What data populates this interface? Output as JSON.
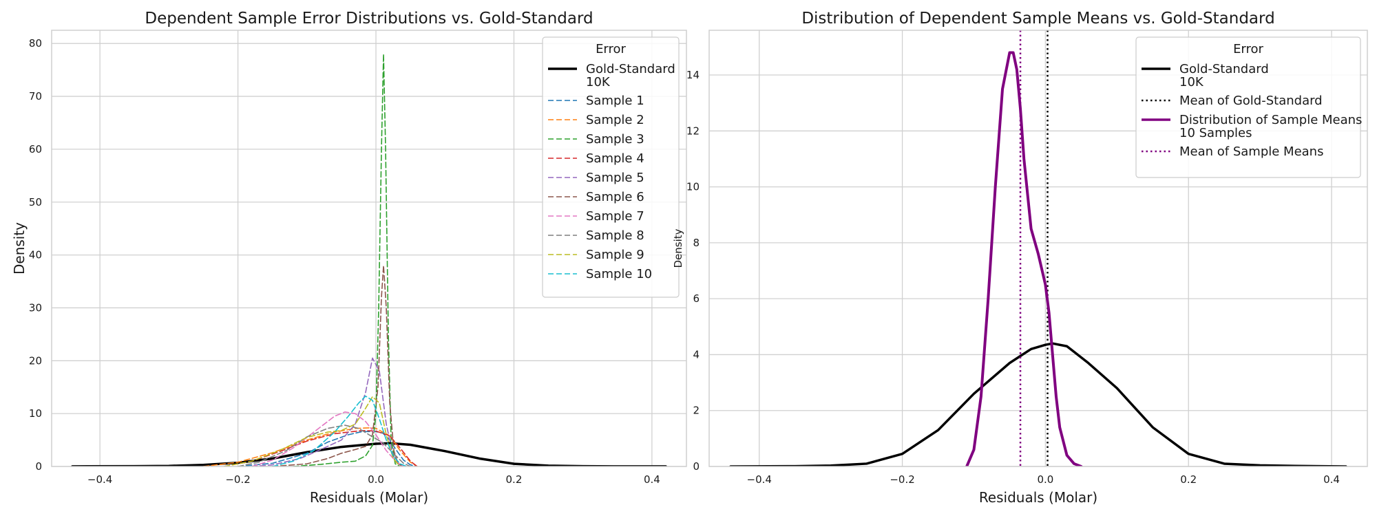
{
  "chart_data": [
    {
      "type": "line",
      "title": "Dependent Sample Error Distributions vs. Gold-Standard",
      "xlabel": "Residuals (Molar)",
      "ylabel": "Density",
      "xlim": [
        -0.47,
        0.45
      ],
      "ylim": [
        0,
        82.5
      ],
      "xticks": [
        -0.4,
        -0.2,
        0.0,
        0.2,
        0.4
      ],
      "xtick_labels": [
        "−0.4",
        "−0.2",
        "0.0",
        "0.2",
        "0.4"
      ],
      "yticks": [
        0,
        10,
        20,
        30,
        40,
        50,
        60,
        70,
        80
      ],
      "ytick_labels": [
        "0",
        "10",
        "20",
        "30",
        "40",
        "50",
        "60",
        "70",
        "80"
      ],
      "grid": true,
      "legend": {
        "title": "Error",
        "placement": "top-right"
      },
      "series": [
        {
          "name": [
            "Gold-Standard",
            "10K"
          ],
          "color": "#000000",
          "style": "solid",
          "width": 3.5,
          "points": [
            [
              -0.44,
              0.02
            ],
            [
              -0.35,
              0.05
            ],
            [
              -0.3,
              0.1
            ],
            [
              -0.25,
              0.3
            ],
            [
              -0.2,
              0.7
            ],
            [
              -0.15,
              1.5
            ],
            [
              -0.1,
              2.7
            ],
            [
              -0.05,
              3.7
            ],
            [
              0.0,
              4.3
            ],
            [
              0.02,
              4.4
            ],
            [
              0.05,
              4.1
            ],
            [
              0.1,
              2.9
            ],
            [
              0.15,
              1.5
            ],
            [
              0.2,
              0.5
            ],
            [
              0.25,
              0.15
            ],
            [
              0.3,
              0.05
            ],
            [
              0.35,
              0.02
            ],
            [
              0.42,
              0.01
            ]
          ]
        },
        {
          "name": [
            "Sample 1"
          ],
          "color": "#1f77b4",
          "style": "dashed",
          "width": 1.6,
          "points": [
            [
              -0.2,
              0
            ],
            [
              -0.15,
              0.6
            ],
            [
              -0.1,
              2.5
            ],
            [
              -0.07,
              4.6
            ],
            [
              -0.04,
              6.0
            ],
            [
              -0.02,
              6.6
            ],
            [
              0.0,
              6.6
            ],
            [
              0.01,
              6.3
            ],
            [
              0.02,
              5.0
            ],
            [
              0.03,
              3.0
            ],
            [
              0.04,
              1.2
            ],
            [
              0.05,
              0.3
            ],
            [
              0.06,
              0
            ]
          ]
        },
        {
          "name": [
            "Sample 2"
          ],
          "color": "#ff7f0e",
          "style": "dashed",
          "width": 1.6,
          "points": [
            [
              -0.25,
              0
            ],
            [
              -0.2,
              0.8
            ],
            [
              -0.15,
              2.6
            ],
            [
              -0.1,
              5.0
            ],
            [
              -0.06,
              6.5
            ],
            [
              -0.03,
              7.2
            ],
            [
              -0.01,
              7.3
            ],
            [
              0.0,
              7.2
            ],
            [
              0.02,
              5.8
            ],
            [
              0.035,
              3.0
            ],
            [
              0.05,
              0.8
            ],
            [
              0.06,
              0
            ]
          ]
        },
        {
          "name": [
            "Sample 3"
          ],
          "color": "#2ca02c",
          "style": "dashed",
          "width": 1.6,
          "points": [
            [
              -0.12,
              0
            ],
            [
              -0.08,
              0.4
            ],
            [
              -0.05,
              0.8
            ],
            [
              -0.03,
              1.0
            ],
            [
              -0.015,
              2.0
            ],
            [
              -0.005,
              4.0
            ],
            [
              0.0,
              10
            ],
            [
              0.004,
              30
            ],
            [
              0.008,
              60
            ],
            [
              0.011,
              78
            ],
            [
              0.014,
              60
            ],
            [
              0.018,
              25
            ],
            [
              0.022,
              5
            ],
            [
              0.028,
              0.5
            ],
            [
              0.035,
              0
            ]
          ]
        },
        {
          "name": [
            "Sample 4"
          ],
          "color": "#d62728",
          "style": "dashed",
          "width": 1.6,
          "points": [
            [
              -0.22,
              0
            ],
            [
              -0.18,
              1.0
            ],
            [
              -0.14,
              2.8
            ],
            [
              -0.1,
              4.8
            ],
            [
              -0.06,
              6.2
            ],
            [
              -0.02,
              6.8
            ],
            [
              0.0,
              6.7
            ],
            [
              0.02,
              5.8
            ],
            [
              0.035,
              3.5
            ],
            [
              0.05,
              1.0
            ],
            [
              0.06,
              0
            ]
          ]
        },
        {
          "name": [
            "Sample 5"
          ],
          "color": "#9467bd",
          "style": "dashed",
          "width": 1.6,
          "points": [
            [
              -0.18,
              0
            ],
            [
              -0.15,
              0.3
            ],
            [
              -0.11,
              1.5
            ],
            [
              -0.08,
              3.2
            ],
            [
              -0.05,
              5.0
            ],
            [
              -0.03,
              8.0
            ],
            [
              -0.015,
              14.0
            ],
            [
              -0.005,
              20.5
            ],
            [
              0.005,
              18.0
            ],
            [
              0.015,
              8.0
            ],
            [
              0.025,
              2.0
            ],
            [
              0.035,
              0.3
            ],
            [
              0.04,
              0
            ]
          ]
        },
        {
          "name": [
            "Sample 6"
          ],
          "color": "#8c564b",
          "style": "dashed",
          "width": 1.6,
          "points": [
            [
              -0.15,
              0
            ],
            [
              -0.1,
              0.5
            ],
            [
              -0.07,
              1.5
            ],
            [
              -0.05,
              2.5
            ],
            [
              -0.03,
              3.2
            ],
            [
              -0.015,
              3.8
            ],
            [
              -0.005,
              6.0
            ],
            [
              0.003,
              15.0
            ],
            [
              0.008,
              32.0
            ],
            [
              0.011,
              38.0
            ],
            [
              0.015,
              30.0
            ],
            [
              0.02,
              12.0
            ],
            [
              0.026,
              3.0
            ],
            [
              0.032,
              0.5
            ],
            [
              0.04,
              0
            ]
          ]
        },
        {
          "name": [
            "Sample 7"
          ],
          "color": "#e377c2",
          "style": "dashed",
          "width": 1.6,
          "points": [
            [
              -0.18,
              0
            ],
            [
              -0.15,
              1.2
            ],
            [
              -0.12,
              3.5
            ],
            [
              -0.09,
              6.5
            ],
            [
              -0.06,
              9.5
            ],
            [
              -0.045,
              10.3
            ],
            [
              -0.03,
              10.0
            ],
            [
              -0.015,
              8.5
            ],
            [
              0.0,
              6.0
            ],
            [
              0.015,
              3.0
            ],
            [
              0.03,
              0.8
            ],
            [
              0.04,
              0
            ]
          ]
        },
        {
          "name": [
            "Sample 8"
          ],
          "color": "#7f7f7f",
          "style": "dashed",
          "width": 1.6,
          "points": [
            [
              -0.2,
              0
            ],
            [
              -0.17,
              0.8
            ],
            [
              -0.13,
              3.0
            ],
            [
              -0.1,
              5.6
            ],
            [
              -0.07,
              7.2
            ],
            [
              -0.045,
              7.8
            ],
            [
              -0.025,
              7.2
            ],
            [
              -0.01,
              6.0
            ],
            [
              0.01,
              4.5
            ],
            [
              0.025,
              2.5
            ],
            [
              0.04,
              0.6
            ],
            [
              0.05,
              0
            ]
          ]
        },
        {
          "name": [
            "Sample 9"
          ],
          "color": "#bcbd22",
          "style": "dashed",
          "width": 1.6,
          "points": [
            [
              -0.22,
              0
            ],
            [
              -0.18,
              1.0
            ],
            [
              -0.14,
              3.0
            ],
            [
              -0.1,
              5.5
            ],
            [
              -0.07,
              6.5
            ],
            [
              -0.05,
              6.8
            ],
            [
              -0.03,
              8.0
            ],
            [
              -0.015,
              11.0
            ],
            [
              -0.005,
              13.2
            ],
            [
              0.005,
              12.0
            ],
            [
              0.015,
              6.0
            ],
            [
              0.025,
              1.5
            ],
            [
              0.035,
              0
            ]
          ]
        },
        {
          "name": [
            "Sample 10"
          ],
          "color": "#17becf",
          "style": "dashed",
          "width": 1.6,
          "points": [
            [
              -0.15,
              0
            ],
            [
              -0.12,
              1.0
            ],
            [
              -0.09,
              3.0
            ],
            [
              -0.06,
              6.5
            ],
            [
              -0.04,
              9.5
            ],
            [
              -0.025,
              12.0
            ],
            [
              -0.015,
              13.3
            ],
            [
              -0.005,
              12.5
            ],
            [
              0.005,
              9.0
            ],
            [
              0.015,
              5.0
            ],
            [
              0.025,
              2.0
            ],
            [
              0.035,
              0.5
            ],
            [
              0.045,
              0
            ]
          ]
        }
      ]
    },
    {
      "type": "line",
      "title": "Distribution of Dependent Sample Means vs. Gold-Standard",
      "xlabel": "Residuals (Molar)",
      "ylabel": "Density",
      "xlim": [
        -0.47,
        0.45
      ],
      "ylim": [
        0,
        15.6
      ],
      "xticks": [
        -0.4,
        -0.2,
        0.0,
        0.2,
        0.4
      ],
      "xtick_labels": [
        "−0.4",
        "−0.2",
        "0.0",
        "0.2",
        "0.4"
      ],
      "yticks": [
        0,
        2,
        4,
        6,
        8,
        10,
        12,
        14
      ],
      "ytick_labels": [
        "0",
        "2",
        "4",
        "6",
        "8",
        "10",
        "12",
        "14"
      ],
      "grid": true,
      "legend": {
        "title": "Error",
        "placement": "top-right"
      },
      "series": [
        {
          "name": [
            "Gold-Standard",
            "10K"
          ],
          "color": "#000000",
          "style": "solid",
          "width": 3.5,
          "points": [
            [
              -0.44,
              0.0
            ],
            [
              -0.35,
              0.01
            ],
            [
              -0.3,
              0.03
            ],
            [
              -0.25,
              0.1
            ],
            [
              -0.2,
              0.45
            ],
            [
              -0.15,
              1.3
            ],
            [
              -0.1,
              2.6
            ],
            [
              -0.05,
              3.7
            ],
            [
              -0.02,
              4.2
            ],
            [
              0.0,
              4.35
            ],
            [
              0.01,
              4.4
            ],
            [
              0.03,
              4.3
            ],
            [
              0.06,
              3.7
            ],
            [
              0.1,
              2.8
            ],
            [
              0.15,
              1.4
            ],
            [
              0.2,
              0.45
            ],
            [
              0.25,
              0.1
            ],
            [
              0.3,
              0.04
            ],
            [
              0.35,
              0.02
            ],
            [
              0.42,
              0.0
            ]
          ]
        },
        {
          "name": [
            "Mean of Gold-Standard"
          ],
          "color": "#000000",
          "style": "dotted",
          "width": 2.5,
          "vline": 0.003
        },
        {
          "name": [
            "Distribution of Sample Means",
            "10 Samples"
          ],
          "color": "#800080",
          "style": "solid",
          "width": 4,
          "points": [
            [
              -0.11,
              0.0
            ],
            [
              -0.1,
              0.6
            ],
            [
              -0.09,
              2.5
            ],
            [
              -0.08,
              6.0
            ],
            [
              -0.07,
              10.0
            ],
            [
              -0.06,
              13.5
            ],
            [
              -0.05,
              14.8
            ],
            [
              -0.045,
              14.8
            ],
            [
              -0.04,
              14.2
            ],
            [
              -0.035,
              12.8
            ],
            [
              -0.03,
              11.0
            ],
            [
              -0.02,
              8.5
            ],
            [
              -0.01,
              7.6
            ],
            [
              0.0,
              6.5
            ],
            [
              0.005,
              5.5
            ],
            [
              0.01,
              4.0
            ],
            [
              0.015,
              2.5
            ],
            [
              0.02,
              1.4
            ],
            [
              0.03,
              0.4
            ],
            [
              0.04,
              0.1
            ],
            [
              0.05,
              0.0
            ]
          ]
        },
        {
          "name": [
            "Mean of Sample Means"
          ],
          "color": "#800080",
          "style": "dotted",
          "width": 2.5,
          "vline": -0.035
        }
      ]
    }
  ]
}
